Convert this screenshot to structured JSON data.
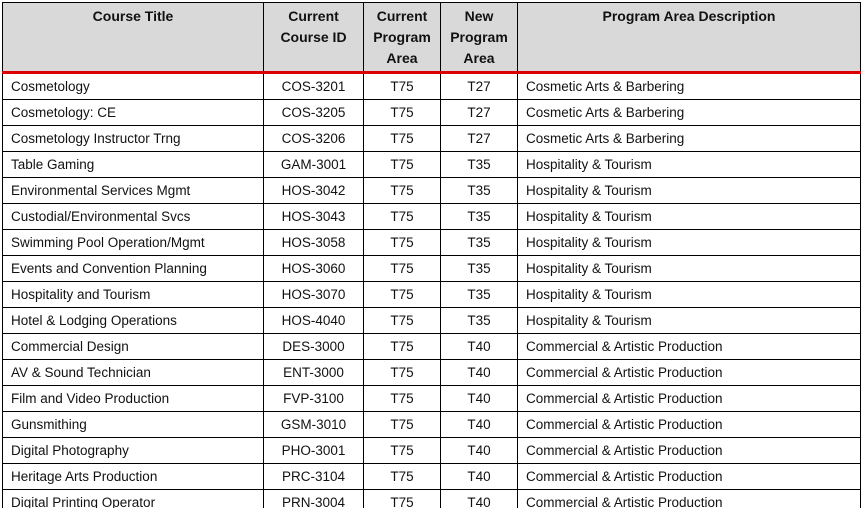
{
  "colors": {
    "header_bg": "#d9d9d9",
    "divider_red": "#dd0000",
    "border": "#000000",
    "text": "#111111"
  },
  "table": {
    "columns": [
      {
        "key": "title",
        "label": "Course Title"
      },
      {
        "key": "course_id",
        "label": "Current Course ID"
      },
      {
        "key": "current_program_area",
        "label": "Current Program Area"
      },
      {
        "key": "new_program_area",
        "label": "New Program Area"
      },
      {
        "key": "description",
        "label": "Program Area Description"
      }
    ],
    "rows": [
      {
        "title": "Cosmetology",
        "course_id": "COS-3201",
        "current_program_area": "T75",
        "new_program_area": "T27",
        "description": "Cosmetic Arts & Barbering"
      },
      {
        "title": "Cosmetology: CE",
        "course_id": "COS-3205",
        "current_program_area": "T75",
        "new_program_area": "T27",
        "description": "Cosmetic Arts & Barbering"
      },
      {
        "title": "Cosmetology Instructor Trng",
        "course_id": "COS-3206",
        "current_program_area": "T75",
        "new_program_area": "T27",
        "description": "Cosmetic Arts & Barbering"
      },
      {
        "title": "Table Gaming",
        "course_id": "GAM-3001",
        "current_program_area": "T75",
        "new_program_area": "T35",
        "description": "Hospitality & Tourism"
      },
      {
        "title": "Environmental Services Mgmt",
        "course_id": "HOS-3042",
        "current_program_area": "T75",
        "new_program_area": "T35",
        "description": "Hospitality & Tourism"
      },
      {
        "title": "Custodial/Environmental Svcs",
        "course_id": "HOS-3043",
        "current_program_area": "T75",
        "new_program_area": "T35",
        "description": "Hospitality & Tourism"
      },
      {
        "title": "Swimming Pool Operation/Mgmt",
        "course_id": "HOS-3058",
        "current_program_area": "T75",
        "new_program_area": "T35",
        "description": "Hospitality & Tourism"
      },
      {
        "title": "Events and Convention Planning",
        "course_id": "HOS-3060",
        "current_program_area": "T75",
        "new_program_area": "T35",
        "description": "Hospitality & Tourism"
      },
      {
        "title": "Hospitality and Tourism",
        "course_id": "HOS-3070",
        "current_program_area": "T75",
        "new_program_area": "T35",
        "description": "Hospitality & Tourism"
      },
      {
        "title": "Hotel & Lodging Operations",
        "course_id": "HOS-4040",
        "current_program_area": "T75",
        "new_program_area": "T35",
        "description": "Hospitality & Tourism"
      },
      {
        "title": "Commercial Design",
        "course_id": "DES-3000",
        "current_program_area": "T75",
        "new_program_area": "T40",
        "description": "Commercial & Artistic Production"
      },
      {
        "title": "AV & Sound Technician",
        "course_id": "ENT-3000",
        "current_program_area": "T75",
        "new_program_area": "T40",
        "description": "Commercial & Artistic Production"
      },
      {
        "title": "Film and Video Production",
        "course_id": "FVP-3100",
        "current_program_area": "T75",
        "new_program_area": "T40",
        "description": "Commercial & Artistic Production"
      },
      {
        "title": "Gunsmithing",
        "course_id": "GSM-3010",
        "current_program_area": "T75",
        "new_program_area": "T40",
        "description": "Commercial & Artistic Production"
      },
      {
        "title": "Digital Photography",
        "course_id": "PHO-3001",
        "current_program_area": "T75",
        "new_program_area": "T40",
        "description": "Commercial & Artistic Production"
      },
      {
        "title": "Heritage Arts Production",
        "course_id": "PRC-3104",
        "current_program_area": "T75",
        "new_program_area": "T40",
        "description": "Commercial & Artistic Production"
      },
      {
        "title": "Digital Printing Operator",
        "course_id": "PRN-3004",
        "current_program_area": "T75",
        "new_program_area": "T40",
        "description": "Commercial & Artistic Production"
      }
    ]
  }
}
